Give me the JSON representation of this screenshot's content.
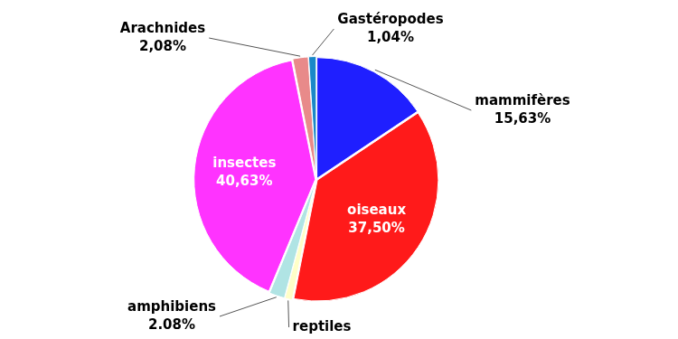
{
  "chart_data": {
    "type": "pie",
    "categories": [
      "mammifères",
      "oiseaux",
      "reptiles",
      "amphibiens",
      "insectes",
      "Arachnides",
      "Gastéropodes"
    ],
    "values": [
      15.63,
      37.5,
      1.04,
      2.08,
      40.63,
      2.08,
      1.04
    ],
    "value_labels": [
      "15,63%",
      "37,50%",
      null,
      "2.08%",
      "40,63%",
      "2,08%",
      "1,04%"
    ],
    "colors": [
      "#1f1fff",
      "#ff1a1a",
      "#ffffc8",
      "#b0e4e4",
      "#ff33ff",
      "#e88a8a",
      "#1a88c8"
    ],
    "data_labels": true
  }
}
